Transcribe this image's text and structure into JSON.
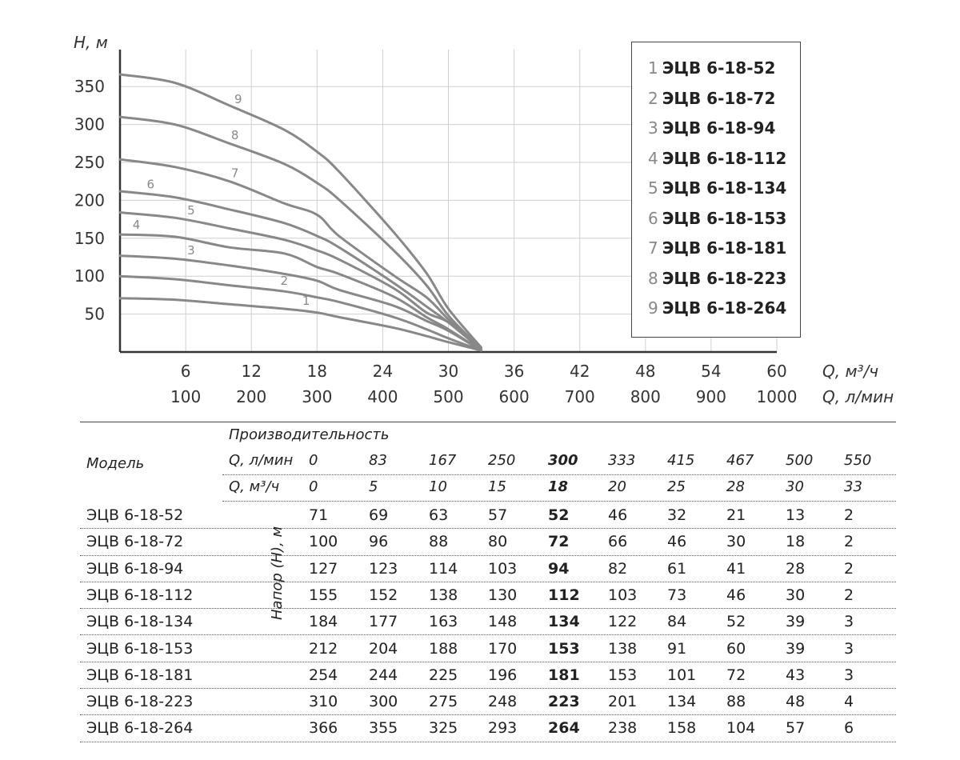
{
  "chart_data": {
    "type": "line",
    "ylabel": "H, м",
    "xlabel_primary": "Q, м³/ч",
    "xlabel_secondary": "Q, л/мин",
    "ylim": [
      0,
      380
    ],
    "xlim": [
      0,
      60
    ],
    "yticks": [
      50,
      100,
      150,
      200,
      250,
      300,
      350
    ],
    "xticks": [
      6,
      12,
      18,
      24,
      30,
      36,
      42,
      48,
      54,
      60
    ],
    "xticks_secondary": [
      100,
      200,
      300,
      400,
      500,
      600,
      700,
      800,
      900,
      1000
    ],
    "grid": true,
    "legend_position": "top-right",
    "series": [
      {
        "name": "ЭЦВ 6-18-52",
        "number": "1",
        "x": [
          0,
          5,
          10,
          15,
          18,
          20,
          25,
          28,
          30,
          33
        ],
        "values": [
          71,
          69,
          63,
          57,
          52,
          46,
          32,
          21,
          13,
          2
        ]
      },
      {
        "name": "ЭЦВ 6-18-72",
        "number": "2",
        "x": [
          0,
          5,
          10,
          15,
          18,
          20,
          25,
          28,
          30,
          33
        ],
        "values": [
          100,
          96,
          88,
          80,
          72,
          66,
          46,
          30,
          18,
          2
        ]
      },
      {
        "name": "ЭЦВ 6-18-94",
        "number": "3",
        "x": [
          0,
          5,
          10,
          15,
          18,
          20,
          25,
          28,
          30,
          33
        ],
        "values": [
          127,
          123,
          114,
          103,
          94,
          82,
          61,
          41,
          28,
          2
        ]
      },
      {
        "name": "ЭЦВ 6-18-112",
        "number": "4",
        "x": [
          0,
          5,
          10,
          15,
          18,
          20,
          25,
          28,
          30,
          33
        ],
        "values": [
          155,
          152,
          138,
          130,
          112,
          103,
          73,
          46,
          30,
          2
        ]
      },
      {
        "name": "ЭЦВ 6-18-134",
        "number": "5",
        "x": [
          0,
          5,
          10,
          15,
          18,
          20,
          25,
          28,
          30,
          33
        ],
        "values": [
          184,
          177,
          163,
          148,
          134,
          122,
          84,
          52,
          39,
          3
        ]
      },
      {
        "name": "ЭЦВ 6-18-153",
        "number": "6",
        "x": [
          0,
          5,
          10,
          15,
          18,
          20,
          25,
          28,
          30,
          33
        ],
        "values": [
          212,
          204,
          188,
          170,
          153,
          138,
          91,
          60,
          39,
          3
        ]
      },
      {
        "name": "ЭЦВ 6-18-181",
        "number": "7",
        "x": [
          0,
          5,
          10,
          15,
          18,
          20,
          25,
          28,
          30,
          33
        ],
        "values": [
          254,
          244,
          225,
          196,
          181,
          153,
          101,
          72,
          43,
          3
        ]
      },
      {
        "name": "ЭЦВ 6-18-223",
        "number": "8",
        "x": [
          0,
          5,
          10,
          15,
          18,
          20,
          25,
          28,
          30,
          33
        ],
        "values": [
          310,
          300,
          275,
          248,
          223,
          201,
          134,
          88,
          48,
          4
        ]
      },
      {
        "name": "ЭЦВ 6-18-264",
        "number": "9",
        "x": [
          0,
          5,
          10,
          15,
          18,
          20,
          25,
          28,
          30,
          33
        ],
        "values": [
          366,
          355,
          325,
          293,
          264,
          238,
          158,
          104,
          57,
          6
        ]
      }
    ],
    "colors": {
      "curve": "#888888",
      "grid": "#cfcfcf",
      "axis": "#333333",
      "label": "#888888"
    }
  },
  "table": {
    "caption": "Производительность",
    "model_header": "Модель",
    "flow_lpm_label": "Q, л/мин",
    "flow_m3h_label": "Q, м³/ч",
    "flow_lpm": [
      "0",
      "83",
      "167",
      "250",
      "300",
      "333",
      "415",
      "467",
      "500",
      "550"
    ],
    "flow_m3h": [
      "0",
      "5",
      "10",
      "15",
      "18",
      "20",
      "25",
      "28",
      "30",
      "33"
    ],
    "highlight_column": 4,
    "head_label": "Напор (Н), м",
    "rows": [
      {
        "model": "ЭЦВ 6-18-52",
        "values": [
          "71",
          "69",
          "63",
          "57",
          "52",
          "46",
          "32",
          "21",
          "13",
          "2"
        ]
      },
      {
        "model": "ЭЦВ 6-18-72",
        "values": [
          "100",
          "96",
          "88",
          "80",
          "72",
          "66",
          "46",
          "30",
          "18",
          "2"
        ]
      },
      {
        "model": "ЭЦВ 6-18-94",
        "values": [
          "127",
          "123",
          "114",
          "103",
          "94",
          "82",
          "61",
          "41",
          "28",
          "2"
        ]
      },
      {
        "model": "ЭЦВ 6-18-112",
        "values": [
          "155",
          "152",
          "138",
          "130",
          "112",
          "103",
          "73",
          "46",
          "30",
          "2"
        ]
      },
      {
        "model": "ЭЦВ 6-18-134",
        "values": [
          "184",
          "177",
          "163",
          "148",
          "134",
          "122",
          "84",
          "52",
          "39",
          "3"
        ]
      },
      {
        "model": "ЭЦВ 6-18-153",
        "values": [
          "212",
          "204",
          "188",
          "170",
          "153",
          "138",
          "91",
          "60",
          "39",
          "3"
        ]
      },
      {
        "model": "ЭЦВ 6-18-181",
        "values": [
          "254",
          "244",
          "225",
          "196",
          "181",
          "153",
          "101",
          "72",
          "43",
          "3"
        ]
      },
      {
        "model": "ЭЦВ 6-18-223",
        "values": [
          "310",
          "300",
          "275",
          "248",
          "223",
          "201",
          "134",
          "88",
          "48",
          "4"
        ]
      },
      {
        "model": "ЭЦВ 6-18-264",
        "values": [
          "366",
          "355",
          "325",
          "293",
          "264",
          "238",
          "158",
          "104",
          "57",
          "6"
        ]
      }
    ]
  }
}
